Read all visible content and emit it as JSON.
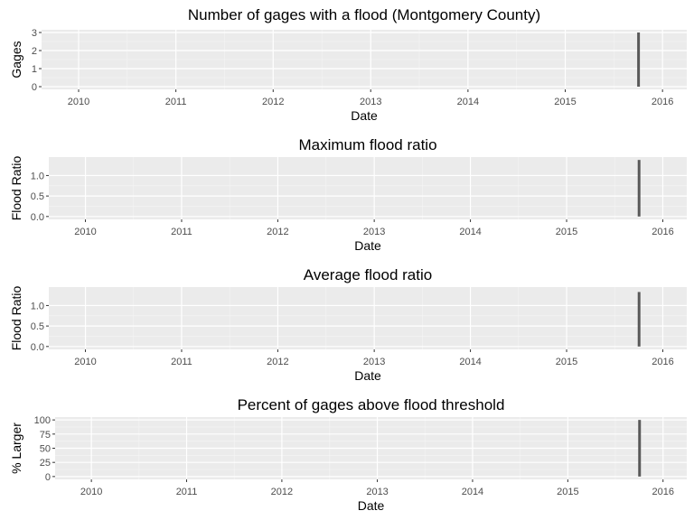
{
  "chart_data": [
    {
      "type": "bar",
      "title": "Number of gages with a flood (Montgomery County)",
      "xlabel": "Date",
      "ylabel": "Gages",
      "x_axis": {
        "type": "date",
        "range": [
          "2009-08-15",
          "2016-04-01"
        ],
        "ticks": [
          "2010",
          "2011",
          "2012",
          "2013",
          "2014",
          "2015",
          "2016"
        ]
      },
      "y_axis": {
        "range": [
          -0.15,
          3.15
        ],
        "ticks": [
          "0",
          "1",
          "2",
          "3"
        ]
      },
      "grid": true,
      "bars": [
        {
          "date": "2015-10-03",
          "value": 3
        }
      ],
      "bar_color": "#595959",
      "panel_background": "#ebebeb"
    },
    {
      "type": "bar",
      "title": "Maximum flood ratio",
      "xlabel": "Date",
      "ylabel": "Flood Ratio",
      "x_axis": {
        "type": "date",
        "range": [
          "2009-08-15",
          "2016-04-01"
        ],
        "ticks": [
          "2010",
          "2011",
          "2012",
          "2013",
          "2014",
          "2015",
          "2016"
        ]
      },
      "y_axis": {
        "range": [
          -0.07,
          1.45
        ],
        "ticks": [
          "0.0",
          "0.5",
          "1.0"
        ]
      },
      "grid": true,
      "bars": [
        {
          "date": "2015-10-03",
          "value": 1.38
        }
      ],
      "bar_color": "#595959",
      "panel_background": "#ebebeb"
    },
    {
      "type": "bar",
      "title": "Average flood ratio",
      "xlabel": "Date",
      "ylabel": "Flood Ratio",
      "x_axis": {
        "type": "date",
        "range": [
          "2009-08-15",
          "2016-04-01"
        ],
        "ticks": [
          "2010",
          "2011",
          "2012",
          "2013",
          "2014",
          "2015",
          "2016"
        ]
      },
      "y_axis": {
        "range": [
          -0.07,
          1.45
        ],
        "ticks": [
          "0.0",
          "0.5",
          "1.0"
        ]
      },
      "grid": true,
      "bars": [
        {
          "date": "2015-10-03",
          "value": 1.33
        }
      ],
      "bar_color": "#595959",
      "panel_background": "#ebebeb"
    },
    {
      "type": "bar",
      "title": "Percent of gages above flood threshold",
      "xlabel": "Date",
      "ylabel": "% Larger",
      "x_axis": {
        "type": "date",
        "range": [
          "2009-08-15",
          "2016-04-01"
        ],
        "ticks": [
          "2010",
          "2011",
          "2012",
          "2013",
          "2014",
          "2015",
          "2016"
        ]
      },
      "y_axis": {
        "range": [
          -5,
          105
        ],
        "ticks": [
          "0",
          "25",
          "50",
          "75",
          "100"
        ]
      },
      "grid": true,
      "bars": [
        {
          "date": "2015-10-03",
          "value": 100
        }
      ],
      "bar_color": "#595959",
      "panel_background": "#ebebeb"
    }
  ]
}
